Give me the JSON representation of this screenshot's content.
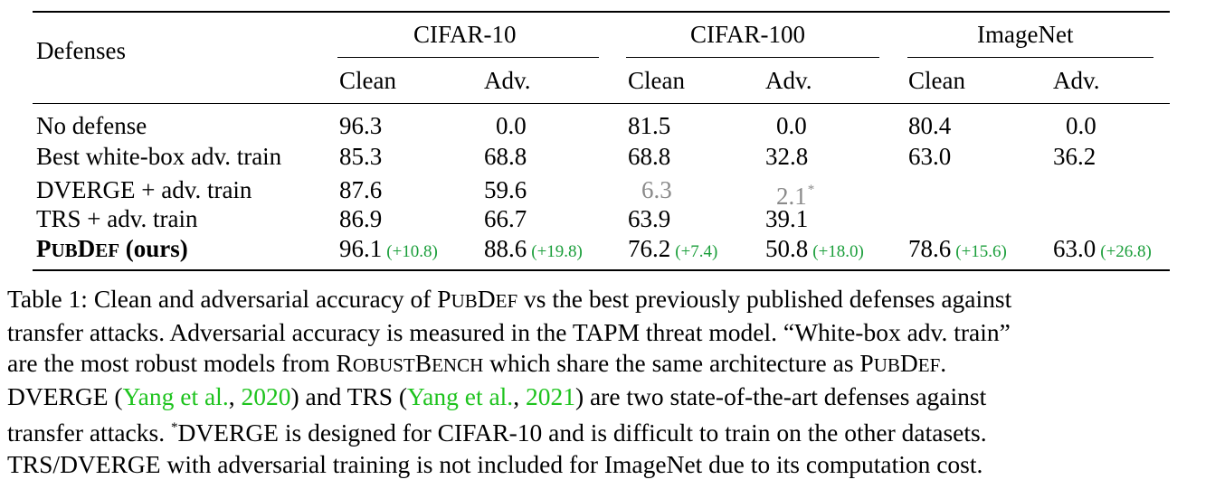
{
  "table": {
    "row_header_label": "Defenses",
    "groups": [
      "CIFAR-10",
      "CIFAR-100",
      "ImageNet"
    ],
    "subcolumns": [
      "Clean",
      "Adv."
    ],
    "rows": [
      {
        "name": "No defense",
        "values": [
          "96.3",
          "0.0",
          "81.5",
          "0.0",
          "80.4",
          "0.0"
        ]
      },
      {
        "name": "Best white-box adv. train",
        "values": [
          "85.3",
          "68.8",
          "68.8",
          "32.8",
          "63.0",
          "36.2"
        ]
      },
      {
        "name": "DVERGE + adv. train",
        "values": [
          "87.6",
          "59.6",
          "6.3",
          "2.1",
          "",
          ""
        ],
        "footnote_marker": "*",
        "grey_cells": [
          2,
          3
        ]
      },
      {
        "name": "TRS + adv. train",
        "values": [
          "86.9",
          "66.7",
          "63.9",
          "39.1",
          "",
          ""
        ]
      },
      {
        "name_parts": {
          "sc1_big": "P",
          "sc1_small": "UB",
          "sc2_big": "D",
          "sc2_small": "EF",
          "rest": " (ours)"
        },
        "values": [
          "96.1",
          "88.6",
          "76.2",
          "50.8",
          "78.6",
          "63.0"
        ],
        "gains": [
          "(+10.8)",
          "(+19.8)",
          "(+7.4)",
          "(+18.0)",
          "(+15.6)",
          "(+26.8)"
        ]
      }
    ],
    "colors": {
      "gain": "#1a9e3a",
      "grey": "#8a8a8a",
      "citation": "#1ec31e"
    }
  },
  "caption": {
    "t1": "Table 1: Clean and adversarial accuracy of P",
    "t1_sc_a": "UB",
    "t1_b": "D",
    "t1_sc_b": "EF",
    "t1_end": " vs the best previously published defenses against",
    "t2": "transfer attacks. Adversarial accuracy is measured in the TAPM threat model. “White-box adv. train”",
    "t3_a": "are the most robust models from R",
    "t3_sc_a": "OBUST",
    "t3_b": "B",
    "t3_sc_b": "ENCH",
    "t3_c": " which share the same architecture as P",
    "t3_sc_c": "UB",
    "t3_d": "D",
    "t3_sc_d": "EF",
    "t3_end": ".",
    "t4_a": "DVERGE (",
    "cite1_authors": "Yang et al.",
    "cite1_sep": ", ",
    "cite1_year": "2020",
    "t4_b": ") and TRS (",
    "cite2_authors": "Yang et al.",
    "cite2_sep": ", ",
    "cite2_year": "2021",
    "t4_c": ") are two state-of-the-art defenses against",
    "t5_a": "transfer attacks. ",
    "t5_star": "*",
    "t5_b": "DVERGE is designed for CIFAR-10 and is difficult to train on the other datasets.",
    "t6": "TRS/DVERGE with adversarial training is not included for ImageNet due to its computation cost."
  }
}
